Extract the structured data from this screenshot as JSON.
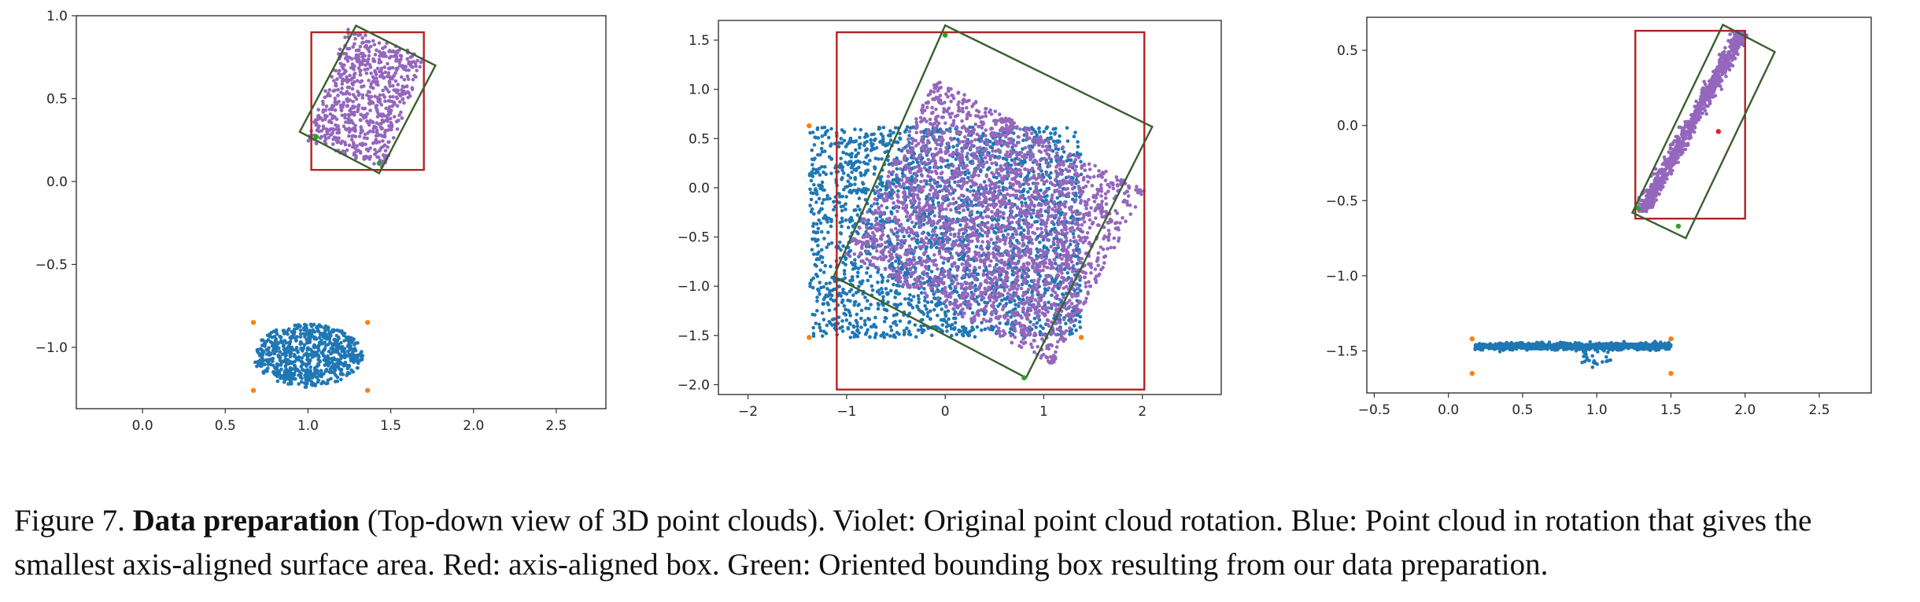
{
  "caption": {
    "prefix": "Figure 7.",
    "title": "Data preparation",
    "text": "(Top-down view of 3D point clouds). Violet: Original point cloud rotation. Blue: Point cloud in rotation that gives the smallest axis-aligned surface area. Red: axis-aligned box. Green: Oriented bounding box resulting from our data preparation."
  },
  "colors": {
    "violet": "#9467bd",
    "blue": "#1f77b4",
    "orange": "#ff7f0e",
    "red": "#b22222",
    "green": "#3a5f2e",
    "green_points": "#2ca02c",
    "red_points": "#d62728",
    "axes": "#333333"
  },
  "chart_data": [
    {
      "type": "scatter",
      "xlim": [
        -0.4,
        2.8
      ],
      "ylim": [
        -1.37,
        1.0
      ],
      "xticks": [
        "0.0",
        "0.5",
        "1.0",
        "1.5",
        "2.0",
        "2.5"
      ],
      "xtick_values": [
        0,
        0.5,
        1.0,
        1.5,
        2.0,
        2.5
      ],
      "yticks": [
        "1.0",
        "0.5",
        "0.0",
        "−0.5",
        "−1.0"
      ],
      "ytick_values": [
        1.0,
        0.5,
        0.0,
        -0.5,
        -1.0
      ],
      "blue_cluster": {
        "shape": "blob",
        "cx": 1.0,
        "cy": -1.05,
        "rx": 0.33,
        "ry": 0.19,
        "n": 700
      },
      "violet_cluster": {
        "shape": "rotated",
        "cx": 1.35,
        "cy": 0.5,
        "w": 0.5,
        "h": 0.72,
        "angle_deg": -20,
        "n": 700
      },
      "orange_points": [
        [
          0.67,
          -0.85
        ],
        [
          1.36,
          -0.85
        ],
        [
          0.67,
          -1.26
        ],
        [
          1.36,
          -1.26
        ]
      ],
      "green_points": [
        [
          1.43,
          0.11
        ],
        [
          1.05,
          0.27
        ]
      ],
      "red_box": [
        [
          1.02,
          0.07
        ],
        [
          1.7,
          0.07
        ],
        [
          1.7,
          0.9
        ],
        [
          1.02,
          0.9
        ]
      ],
      "green_box": [
        [
          0.95,
          0.3
        ],
        [
          1.29,
          0.94
        ],
        [
          1.77,
          0.7
        ],
        [
          1.43,
          0.05
        ]
      ]
    },
    {
      "type": "scatter",
      "xlim": [
        -2.3,
        2.8
      ],
      "ylim": [
        -2.1,
        1.7
      ],
      "xticks": [
        "−2",
        "−1",
        "0",
        "1",
        "2"
      ],
      "xtick_values": [
        -2,
        -1,
        0,
        1,
        2
      ],
      "yticks": [
        "1.5",
        "1.0",
        "0.5",
        "0.0",
        "−0.5",
        "−1.0",
        "−1.5",
        "−2.0"
      ],
      "ytick_values": [
        1.5,
        1.0,
        0.5,
        0.0,
        -0.5,
        -1.0,
        -1.5,
        -2.0
      ],
      "blue_cluster": {
        "shape": "rect",
        "x0": -1.38,
        "x1": 1.38,
        "y0": -1.52,
        "y1": 0.62,
        "n": 2400
      },
      "violet_cluster": {
        "shape": "rotated",
        "cx": 0.5,
        "cy": -0.35,
        "w": 2.0,
        "h": 2.4,
        "angle_deg": 62,
        "n": 2600
      },
      "orange_points": [
        [
          -1.38,
          0.63
        ],
        [
          -1.38,
          -1.52
        ],
        [
          1.38,
          -1.52
        ]
      ],
      "green_points": [
        [
          0.0,
          1.55
        ],
        [
          0.8,
          -1.93
        ]
      ],
      "red_box": [
        [
          -1.1,
          -2.05
        ],
        [
          2.02,
          -2.05
        ],
        [
          2.02,
          1.58
        ],
        [
          -1.1,
          1.58
        ]
      ],
      "green_box": [
        [
          -1.13,
          -0.9
        ],
        [
          0.0,
          1.65
        ],
        [
          2.1,
          0.62
        ],
        [
          0.82,
          -1.93
        ]
      ]
    },
    {
      "type": "scatter",
      "xlim": [
        -0.55,
        2.85
      ],
      "ylim": [
        -1.78,
        0.72
      ],
      "xticks": [
        "−0.5",
        "0.0",
        "0.5",
        "1.0",
        "1.5",
        "2.0",
        "2.5"
      ],
      "xtick_values": [
        -0.5,
        0.0,
        0.5,
        1.0,
        1.5,
        2.0,
        2.5
      ],
      "yticks": [
        "0.5",
        "0.0",
        "−0.5",
        "−1.0",
        "−1.5"
      ],
      "ytick_values": [
        0.5,
        0.0,
        -0.5,
        -1.0,
        -1.5
      ],
      "blue_cluster": {
        "shape": "band",
        "x0": 0.18,
        "x1": 1.5,
        "ycenter": -1.47,
        "thickness": 0.04,
        "n": 900
      },
      "violet_cluster": {
        "shape": "diagonal",
        "x0": 1.3,
        "y0": -0.58,
        "x1": 1.98,
        "y1": 0.62,
        "width": 0.08,
        "n": 900
      },
      "orange_points": [
        [
          0.16,
          -1.42
        ],
        [
          1.5,
          -1.42
        ],
        [
          0.16,
          -1.65
        ],
        [
          1.5,
          -1.65
        ]
      ],
      "green_points": [
        [
          1.28,
          -0.55
        ],
        [
          1.55,
          -0.67
        ]
      ],
      "red_points": [
        [
          1.82,
          -0.04
        ]
      ],
      "red_box": [
        [
          1.26,
          -0.62
        ],
        [
          2.0,
          -0.62
        ],
        [
          2.0,
          0.63
        ],
        [
          1.26,
          0.63
        ]
      ],
      "green_box": [
        [
          1.24,
          -0.58
        ],
        [
          1.85,
          0.67
        ],
        [
          2.2,
          0.49
        ],
        [
          1.6,
          -0.75
        ]
      ]
    }
  ]
}
